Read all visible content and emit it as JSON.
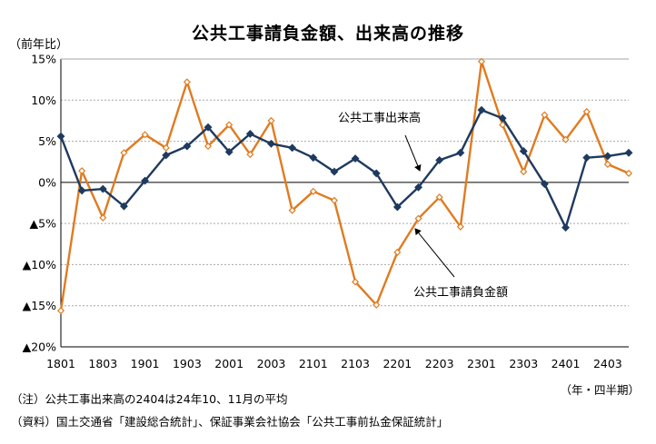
{
  "chart_data": {
    "type": "line",
    "title": "公共工事請負金額、出来高の推移",
    "ylabel": "（前年比）",
    "xlabel": "（年・四半期）",
    "ylim": [
      -20,
      15
    ],
    "yticks": [
      15,
      10,
      5,
      0,
      -5,
      -10,
      -15,
      -20
    ],
    "ytick_labels": [
      "15%",
      "10%",
      "5%",
      "0%",
      "▲5%",
      "▲10%",
      "▲15%",
      "▲20%"
    ],
    "x": [
      "1801",
      "1802",
      "1803",
      "1804",
      "1901",
      "1902",
      "1903",
      "1904",
      "2001",
      "2002",
      "2003",
      "2004",
      "2101",
      "2102",
      "2103",
      "2104",
      "2201",
      "2202",
      "2203",
      "2204",
      "2301",
      "2302",
      "2303",
      "2304",
      "2401",
      "2402",
      "2403",
      "2404"
    ],
    "xtick_labels": [
      "1801",
      "1803",
      "1901",
      "1903",
      "2001",
      "2003",
      "2101",
      "2103",
      "2201",
      "2203",
      "2301",
      "2303",
      "2401",
      "2403"
    ],
    "grid": "horizontal",
    "series": [
      {
        "name": "公共工事出来高",
        "color": "#1f3a5f",
        "marker": "filled-diamond",
        "values": [
          5.6,
          -1.0,
          -0.8,
          -2.9,
          0.2,
          3.3,
          4.4,
          6.7,
          3.7,
          5.9,
          4.7,
          4.2,
          3.0,
          1.3,
          2.9,
          1.1,
          -3.0,
          -0.6,
          2.7,
          3.6,
          8.8,
          7.8,
          3.8,
          -0.2,
          -5.5,
          3.0,
          3.2,
          3.6
        ]
      },
      {
        "name": "公共工事請負金額",
        "color": "#e07b20",
        "marker": "open-diamond",
        "values": [
          -15.6,
          1.4,
          -4.3,
          3.6,
          5.8,
          4.2,
          12.2,
          4.4,
          7.0,
          3.4,
          7.5,
          -3.4,
          -1.1,
          -2.2,
          -12.1,
          -14.9,
          -8.5,
          -4.4,
          -1.8,
          -5.4,
          14.7,
          7.0,
          1.3,
          8.2,
          5.2,
          8.6,
          2.2,
          1.1
        ]
      }
    ],
    "annotations": [
      {
        "text": "公共工事出来高",
        "points_to": "2202"
      },
      {
        "text": "公共工事請負金額",
        "points_to": "2202"
      }
    ]
  },
  "notes": [
    "（注）公共工事出来高の2404は24年10、11月の平均",
    "（資料）国土交通省「建設総合統計」、保証事業会社協会「公共工事前払金保証統計」"
  ]
}
